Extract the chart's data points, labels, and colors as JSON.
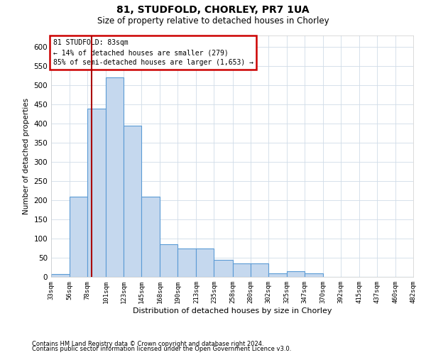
{
  "title1": "81, STUDFOLD, CHORLEY, PR7 1UA",
  "title2": "Size of property relative to detached houses in Chorley",
  "xlabel": "Distribution of detached houses by size in Chorley",
  "ylabel": "Number of detached properties",
  "annotation_line1": "81 STUDFOLD: 83sqm",
  "annotation_line2": "← 14% of detached houses are smaller (279)",
  "annotation_line3": "85% of semi-detached houses are larger (1,653) →",
  "bin_edges": [
    33,
    56,
    78,
    101,
    123,
    145,
    168,
    190,
    213,
    235,
    258,
    280,
    302,
    325,
    347,
    370,
    392,
    415,
    437,
    460,
    482
  ],
  "bin_counts": [
    8,
    210,
    440,
    520,
    395,
    210,
    85,
    75,
    75,
    45,
    35,
    35,
    10,
    15,
    10,
    0,
    0,
    0,
    0,
    0
  ],
  "bar_color": "#c5d8ee",
  "bar_edge_color": "#5b9bd5",
  "vline_color": "#aa0000",
  "vline_x": 83,
  "annotation_box_color": "#cc0000",
  "grid_color": "#d0dce8",
  "ylim": [
    0,
    630
  ],
  "yticks": [
    0,
    50,
    100,
    150,
    200,
    250,
    300,
    350,
    400,
    450,
    500,
    550,
    600
  ],
  "footnote1": "Contains HM Land Registry data © Crown copyright and database right 2024.",
  "footnote2": "Contains public sector information licensed under the Open Government Licence v3.0."
}
